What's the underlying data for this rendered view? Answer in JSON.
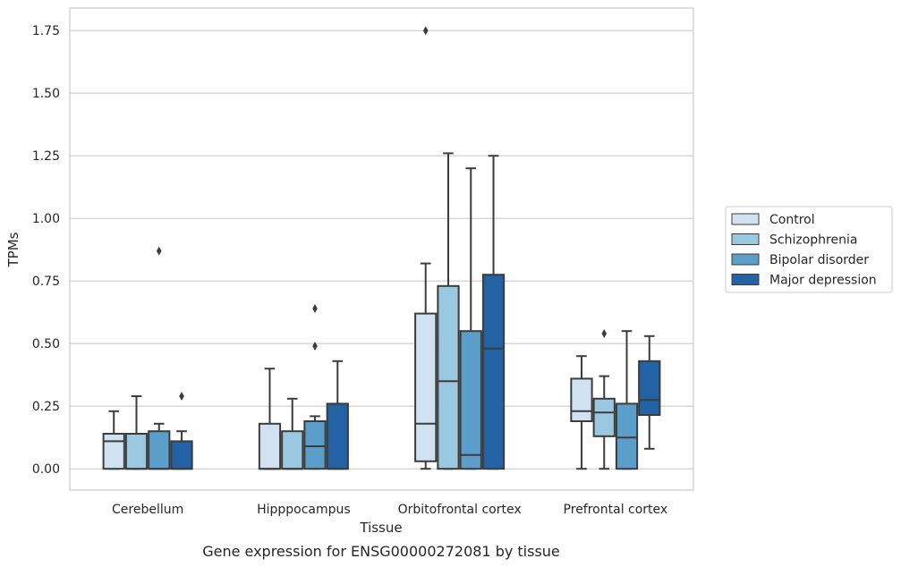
{
  "chart_data": {
    "type": "boxplot",
    "title": "",
    "caption": "Gene expression for ENSG00000272081 by tissue",
    "xlabel": "Tissue",
    "ylabel": "TPMs",
    "ylim": [
      -0.085,
      1.84
    ],
    "yticks": [
      "0.00",
      "0.25",
      "0.50",
      "0.75",
      "1.00",
      "1.25",
      "1.50",
      "1.75"
    ],
    "ytick_values": [
      0,
      0.25,
      0.5,
      0.75,
      1.0,
      1.25,
      1.5,
      1.75
    ],
    "grid": true,
    "legend_position": "right-center",
    "categories": [
      "Cerebellum",
      "Hipppocampus",
      "Orbitofrontal cortex",
      "Prefrontal cortex"
    ],
    "series": [
      {
        "name": "Control",
        "color": "#d0e1f2",
        "boxes": [
          {
            "whislo": 0.0,
            "q1": 0.0,
            "med": 0.11,
            "q3": 0.14,
            "whishi": 0.23,
            "fliers": []
          },
          {
            "whislo": 0.0,
            "q1": 0.0,
            "med": 0.0,
            "q3": 0.18,
            "whishi": 0.4,
            "fliers": []
          },
          {
            "whislo": 0.0,
            "q1": 0.03,
            "med": 0.18,
            "q3": 0.62,
            "whishi": 0.82,
            "fliers": [
              1.75
            ]
          },
          {
            "whislo": 0.0,
            "q1": 0.19,
            "med": 0.23,
            "q3": 0.36,
            "whishi": 0.45,
            "fliers": []
          }
        ]
      },
      {
        "name": "Schizophrenia",
        "color": "#9ac8e0",
        "boxes": [
          {
            "whislo": 0.0,
            "q1": 0.0,
            "med": 0.0,
            "q3": 0.14,
            "whishi": 0.29,
            "fliers": []
          },
          {
            "whislo": 0.0,
            "q1": 0.0,
            "med": 0.0,
            "q3": 0.15,
            "whishi": 0.28,
            "fliers": []
          },
          {
            "whislo": 0.0,
            "q1": 0.0,
            "med": 0.35,
            "q3": 0.73,
            "whishi": 1.26,
            "fliers": []
          },
          {
            "whislo": 0.0,
            "q1": 0.13,
            "med": 0.225,
            "q3": 0.28,
            "whishi": 0.37,
            "fliers": [
              0.54
            ]
          }
        ]
      },
      {
        "name": "Bipolar disorder",
        "color": "#5a9ec9",
        "boxes": [
          {
            "whislo": 0.0,
            "q1": 0.0,
            "med": 0.0,
            "q3": 0.15,
            "whishi": 0.18,
            "fliers": [
              0.87
            ]
          },
          {
            "whislo": 0.0,
            "q1": 0.0,
            "med": 0.09,
            "q3": 0.19,
            "whishi": 0.21,
            "fliers": [
              0.49,
              0.64
            ]
          },
          {
            "whislo": 0.0,
            "q1": 0.0,
            "med": 0.055,
            "q3": 0.55,
            "whishi": 1.2,
            "fliers": []
          },
          {
            "whislo": 0.0,
            "q1": 0.0,
            "med": 0.125,
            "q3": 0.26,
            "whishi": 0.55,
            "fliers": []
          }
        ]
      },
      {
        "name": "Major depression",
        "color": "#2362a4",
        "boxes": [
          {
            "whislo": 0.0,
            "q1": 0.0,
            "med": 0.0,
            "q3": 0.11,
            "whishi": 0.15,
            "fliers": [
              0.29
            ]
          },
          {
            "whislo": 0.0,
            "q1": 0.0,
            "med": 0.0,
            "q3": 0.26,
            "whishi": 0.43,
            "fliers": []
          },
          {
            "whislo": 0.0,
            "q1": 0.0,
            "med": 0.48,
            "q3": 0.775,
            "whishi": 1.25,
            "fliers": []
          },
          {
            "whislo": 0.08,
            "q1": 0.215,
            "med": 0.275,
            "q3": 0.43,
            "whishi": 0.53,
            "fliers": []
          }
        ]
      }
    ]
  }
}
